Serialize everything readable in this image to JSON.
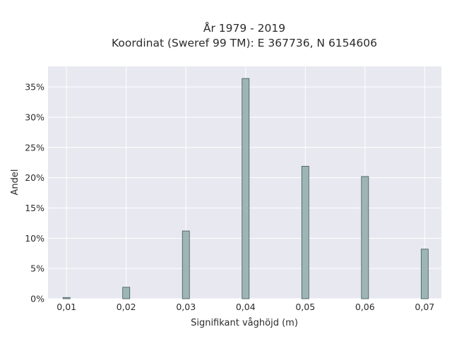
{
  "chart_data": {
    "type": "bar",
    "title_lines": [
      "År 1979 - 2019",
      "Koordinat (Sweref 99 TM): E 367736, N 6154606"
    ],
    "xlabel": "Signifikant våghöjd (m)",
    "ylabel": "Andel",
    "x": [
      0.01,
      0.02,
      0.03,
      0.04,
      0.05,
      0.06,
      0.07
    ],
    "values": [
      0.2,
      1.9,
      11.2,
      36.4,
      21.9,
      20.2,
      8.2
    ],
    "xticks": [
      0.01,
      0.02,
      0.03,
      0.04,
      0.05,
      0.06,
      0.07
    ],
    "xtick_labels": [
      "0,01",
      "0,02",
      "0,03",
      "0,04",
      "0,05",
      "0,06",
      "0,07"
    ],
    "yticks": [
      0,
      5,
      10,
      15,
      20,
      25,
      30,
      35
    ],
    "ytick_labels": [
      "0%",
      "5%",
      "10%",
      "15%",
      "20%",
      "25%",
      "30%",
      "35%"
    ],
    "xlim": [
      0.0069,
      0.0728
    ],
    "ylim": [
      0,
      38.4
    ],
    "grid": true,
    "colors": {
      "plot_bg": "#e8e8f0",
      "bar_fill": "#9db5b5",
      "bar_edge": "#3f5656"
    }
  }
}
